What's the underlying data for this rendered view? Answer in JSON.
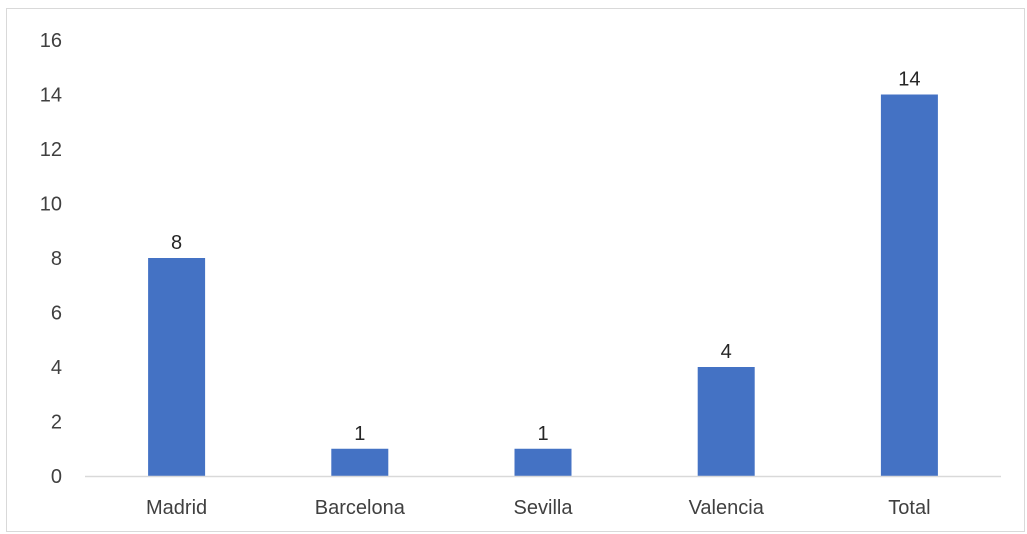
{
  "chart_data": {
    "type": "bar",
    "title": "",
    "xlabel": "",
    "ylabel": "",
    "categories": [
      "Madrid",
      "Barcelona",
      "Sevilla",
      "Valencia",
      "Total"
    ],
    "values": [
      8,
      1,
      1,
      4,
      14
    ],
    "data_labels": [
      "8",
      "1",
      "1",
      "4",
      "14"
    ],
    "ylim": [
      0,
      16
    ],
    "yticks": [
      0,
      2,
      4,
      6,
      8,
      10,
      12,
      14,
      16
    ],
    "ytick_labels": [
      "0",
      "2",
      "4",
      "6",
      "8",
      "10",
      "12",
      "14",
      "16"
    ],
    "grid": false,
    "legend": "none",
    "bar_color": "#4472c4",
    "axis_color": "#d9d9d9"
  }
}
